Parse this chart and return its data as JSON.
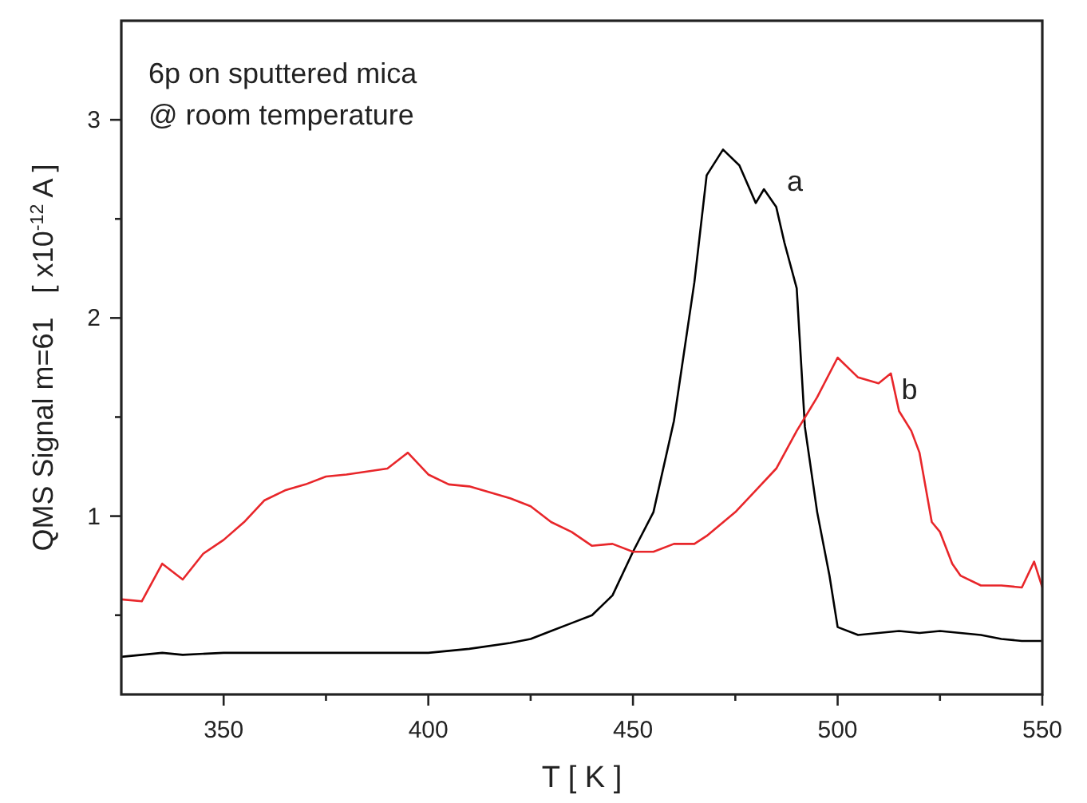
{
  "chart_data": {
    "type": "line",
    "xlabel": "T   [ K ]",
    "ylabel": "QMS Signal m=61   [ x10$^{-12}$ A ]",
    "annotations": [
      "6p on sputtered mica",
      "@ room temperature"
    ],
    "xlim": [
      325,
      550
    ],
    "ylim": [
      0.1,
      3.5
    ],
    "xticks": [
      350,
      {
        "value": 375,
        "label": null
      },
      400,
      {
        "value": 425,
        "label": null
      },
      450,
      {
        "value": 475,
        "label": null
      },
      500,
      {
        "value": 525,
        "label": null
      },
      550
    ],
    "yticks": [
      {
        "value": 0.5,
        "label": null
      },
      1,
      {
        "value": 1.5,
        "label": null
      },
      2,
      {
        "value": 2.5,
        "label": null
      },
      3
    ],
    "grid": false,
    "line_style": "solid",
    "marker": "none",
    "series": [
      {
        "name": "a",
        "color": "#000000",
        "x": [
          325,
          330,
          335,
          340,
          350,
          360,
          370,
          380,
          390,
          400,
          410,
          420,
          425,
          430,
          435,
          440,
          445,
          450,
          455,
          460,
          465,
          468,
          472,
          476,
          480,
          482,
          485,
          487,
          490,
          492,
          495,
          498,
          500,
          505,
          510,
          515,
          520,
          525,
          530,
          535,
          540,
          545,
          550
        ],
        "values": [
          0.29,
          0.3,
          0.31,
          0.3,
          0.31,
          0.31,
          0.31,
          0.31,
          0.31,
          0.31,
          0.33,
          0.36,
          0.38,
          0.42,
          0.46,
          0.5,
          0.6,
          0.82,
          1.02,
          1.48,
          2.18,
          2.72,
          2.85,
          2.77,
          2.58,
          2.65,
          2.56,
          2.38,
          2.15,
          1.45,
          1.02,
          0.7,
          0.44,
          0.4,
          0.41,
          0.42,
          0.41,
          0.42,
          0.41,
          0.4,
          0.38,
          0.37,
          0.37
        ]
      },
      {
        "name": "b",
        "color": "#e8262a",
        "x": [
          325,
          330,
          335,
          340,
          345,
          350,
          355,
          360,
          365,
          370,
          375,
          380,
          390,
          395,
          400,
          405,
          410,
          420,
          425,
          430,
          435,
          440,
          445,
          450,
          455,
          460,
          465,
          468,
          475,
          480,
          485,
          490,
          495,
          500,
          505,
          510,
          513,
          515,
          518,
          520,
          523,
          525,
          528,
          530,
          535,
          540,
          545,
          548,
          550
        ],
        "values": [
          0.58,
          0.57,
          0.76,
          0.68,
          0.81,
          0.88,
          0.97,
          1.08,
          1.13,
          1.16,
          1.2,
          1.21,
          1.24,
          1.32,
          1.21,
          1.16,
          1.15,
          1.09,
          1.05,
          0.97,
          0.92,
          0.85,
          0.86,
          0.82,
          0.82,
          0.86,
          0.86,
          0.9,
          1.02,
          1.13,
          1.24,
          1.43,
          1.6,
          1.8,
          1.7,
          1.67,
          1.72,
          1.53,
          1.43,
          1.32,
          0.97,
          0.92,
          0.76,
          0.7,
          0.65,
          0.65,
          0.64,
          0.77,
          0.64
        ]
      }
    ]
  }
}
